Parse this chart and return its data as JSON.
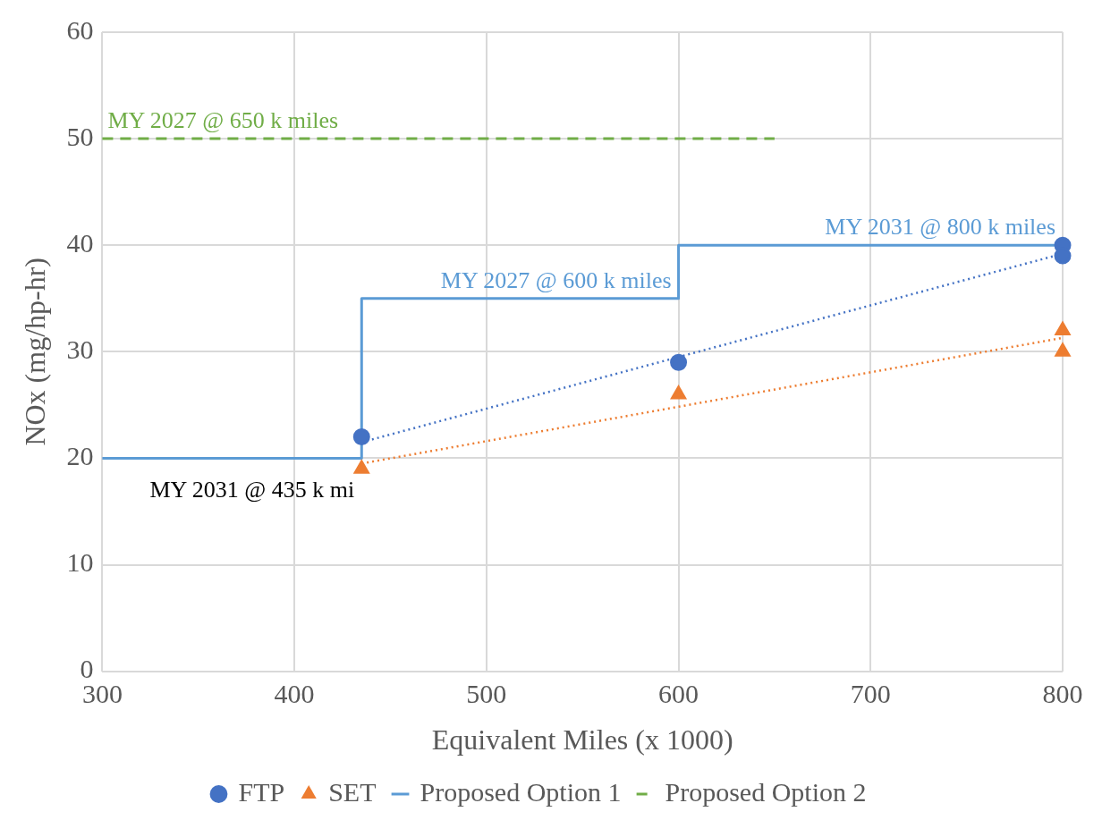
{
  "chart_data": {
    "type": "scatter",
    "xlabel": "Equivalent Miles (x 1000)",
    "ylabel": "NOx (mg/hp-hr)",
    "xlim": [
      300,
      800
    ],
    "xticks": [
      300,
      400,
      500,
      600,
      700,
      800
    ],
    "ylim": [
      0,
      60
    ],
    "yticks": [
      0,
      10,
      20,
      30,
      40,
      50,
      60
    ],
    "grid": true,
    "legend": "bottom",
    "series": [
      {
        "name": "FTP",
        "type": "scatter",
        "color": "#4472c4",
        "marker": "circle",
        "x": [
          435,
          600,
          800,
          800
        ],
        "values": [
          22,
          29,
          40,
          39
        ]
      },
      {
        "name": "SET",
        "type": "scatter",
        "color": "#ed7d31",
        "marker": "triangle",
        "x": [
          435,
          600,
          800,
          800
        ],
        "values": [
          19,
          26,
          32,
          30
        ]
      },
      {
        "name": "Proposed Option 1",
        "type": "step",
        "color": "#5b9bd5",
        "line_style": "solid",
        "marker": "none",
        "x": [
          300,
          435,
          600,
          800
        ],
        "values": [
          20,
          35,
          40,
          40
        ]
      },
      {
        "name": "Proposed Option 2",
        "type": "line",
        "color": "#70ad47",
        "line_style": "dashed",
        "marker": "none",
        "x": [
          300,
          650
        ],
        "values": [
          50,
          50
        ]
      },
      {
        "type": "line",
        "color": "#4472c4",
        "line_style": "dotted",
        "marker": "none",
        "x": [
          435,
          800
        ],
        "values": [
          21.5,
          39.2
        ]
      },
      {
        "type": "line",
        "color": "#ed7d31",
        "line_style": "dotted",
        "marker": "none",
        "x": [
          435,
          800
        ],
        "values": [
          19.5,
          31.3
        ]
      }
    ],
    "annotations": [
      {
        "text": "MY 2027 @ 650 k miles",
        "x": 300,
        "y": 50
      },
      {
        "text": "MY 2031 @ 800 k miles",
        "x": 800,
        "y": 40
      },
      {
        "text": "MY 2027 @ 600 k miles",
        "x": 600,
        "y": 35
      },
      {
        "text": "MY 2031 @ 435 k mi",
        "x": 435,
        "y": 20
      }
    ]
  }
}
